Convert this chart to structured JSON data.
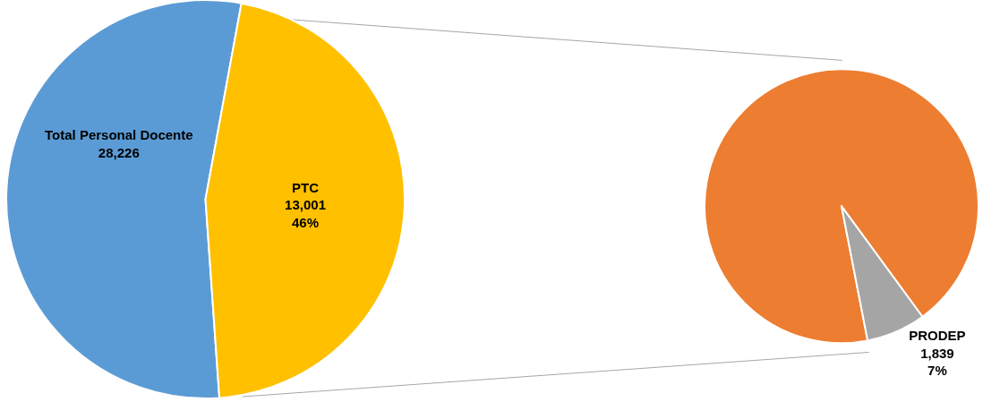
{
  "chart_data": [
    {
      "type": "pie",
      "categories": [
        null,
        "PTC"
      ],
      "values": [
        54,
        46
      ],
      "colors": [
        "#5b9bd5",
        "#ffc000"
      ],
      "value_labels": [
        null,
        "13,001\n46%"
      ],
      "annotations": [
        "Total Personal Docente\n28,226"
      ]
    },
    {
      "type": "pie",
      "categories": [
        null,
        "PRODEP"
      ],
      "values": [
        93,
        7
      ],
      "colors": [
        "#ed7d31",
        "#a5a5a5"
      ],
      "value_labels": [
        null,
        "1,839\n7%"
      ]
    }
  ]
}
